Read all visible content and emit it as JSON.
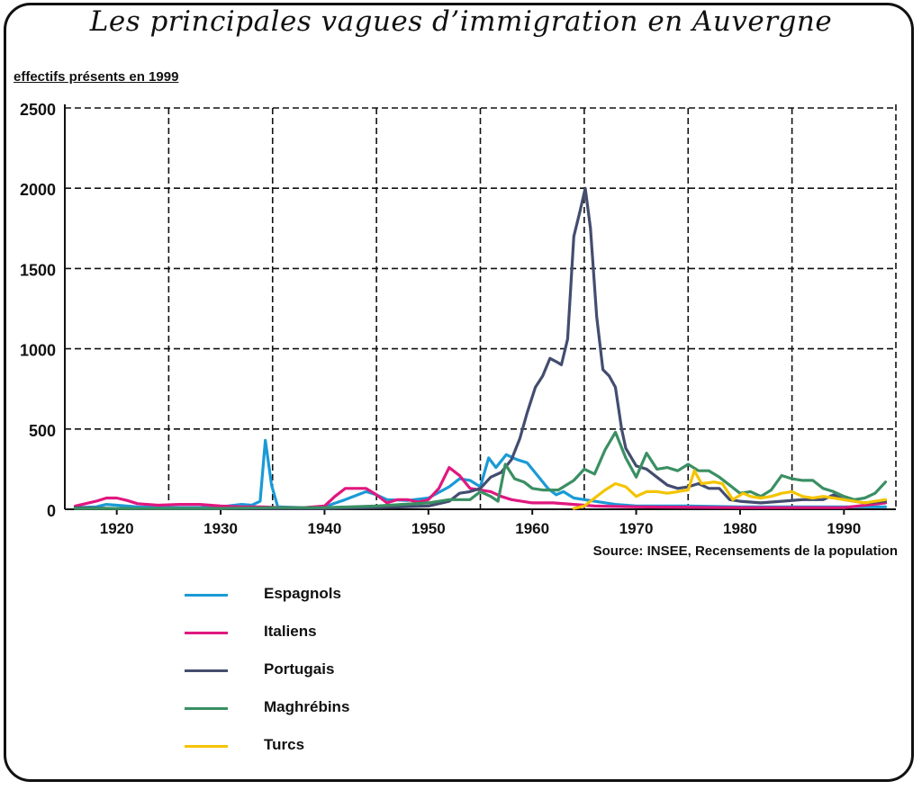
{
  "title": "Les principales vagues d’immigration en Auvergne",
  "subtitle": "effectifs présents en 1999",
  "source": "Source: INSEE, Recensements de la population",
  "chart_data": {
    "type": "line",
    "xlim": [
      1915,
      1995
    ],
    "ylim": [
      0,
      2500
    ],
    "x_ticks": [
      1920,
      1930,
      1940,
      1950,
      1960,
      1970,
      1980,
      1990
    ],
    "x_tick_labels": [
      "1920",
      "1930",
      "1940",
      "1950",
      "1960",
      "1970",
      "1980",
      "1990"
    ],
    "y_ticks": [
      0,
      500,
      1000,
      1500,
      2000,
      2500
    ],
    "y_tick_labels": [
      "0",
      "500",
      "1000",
      "1500",
      "2000",
      "2500"
    ],
    "grid": true,
    "legend_position": "bottom",
    "series": [
      {
        "name": "Espagnols",
        "color": "#1a9ad6",
        "points": [
          [
            1916,
            10
          ],
          [
            1918,
            15
          ],
          [
            1919,
            30
          ],
          [
            1920,
            25
          ],
          [
            1922,
            15
          ],
          [
            1925,
            10
          ],
          [
            1928,
            10
          ],
          [
            1930,
            15
          ],
          [
            1932,
            30
          ],
          [
            1933,
            25
          ],
          [
            1933.8,
            50
          ],
          [
            1934.3,
            430
          ],
          [
            1934.9,
            150
          ],
          [
            1935.5,
            15
          ],
          [
            1938,
            10
          ],
          [
            1940,
            15
          ],
          [
            1942,
            60
          ],
          [
            1944,
            110
          ],
          [
            1945,
            90
          ],
          [
            1946,
            60
          ],
          [
            1948,
            55
          ],
          [
            1950,
            70
          ],
          [
            1952,
            140
          ],
          [
            1953,
            190
          ],
          [
            1954,
            180
          ],
          [
            1955,
            140
          ],
          [
            1955.8,
            320
          ],
          [
            1956.5,
            260
          ],
          [
            1957.5,
            340
          ],
          [
            1958.5,
            310
          ],
          [
            1959.5,
            290
          ],
          [
            1960.5,
            210
          ],
          [
            1961.5,
            130
          ],
          [
            1962.3,
            90
          ],
          [
            1963,
            110
          ],
          [
            1964,
            70
          ],
          [
            1966,
            50
          ],
          [
            1968,
            30
          ],
          [
            1970,
            20
          ],
          [
            1975,
            20
          ],
          [
            1980,
            15
          ],
          [
            1985,
            15
          ],
          [
            1990,
            15
          ],
          [
            1994,
            15
          ]
        ]
      },
      {
        "name": "Italiens",
        "color": "#e0177f",
        "points": [
          [
            1916,
            20
          ],
          [
            1918,
            50
          ],
          [
            1919,
            70
          ],
          [
            1920,
            70
          ],
          [
            1921,
            55
          ],
          [
            1922,
            35
          ],
          [
            1924,
            25
          ],
          [
            1926,
            30
          ],
          [
            1928,
            30
          ],
          [
            1930,
            20
          ],
          [
            1932,
            15
          ],
          [
            1934,
            15
          ],
          [
            1936,
            10
          ],
          [
            1938,
            10
          ],
          [
            1940,
            20
          ],
          [
            1941,
            80
          ],
          [
            1942,
            130
          ],
          [
            1943,
            130
          ],
          [
            1944,
            130
          ],
          [
            1945,
            90
          ],
          [
            1946,
            40
          ],
          [
            1947,
            60
          ],
          [
            1948,
            60
          ],
          [
            1949,
            45
          ],
          [
            1950,
            60
          ],
          [
            1951,
            130
          ],
          [
            1952,
            260
          ],
          [
            1953,
            210
          ],
          [
            1954,
            130
          ],
          [
            1955,
            120
          ],
          [
            1956,
            110
          ],
          [
            1957,
            80
          ],
          [
            1958,
            60
          ],
          [
            1960,
            40
          ],
          [
            1962,
            40
          ],
          [
            1964,
            30
          ],
          [
            1966,
            20
          ],
          [
            1970,
            15
          ],
          [
            1980,
            10
          ],
          [
            1990,
            10
          ],
          [
            1994,
            40
          ]
        ]
      },
      {
        "name": "Portugais",
        "color": "#434d6f",
        "points": [
          [
            1916,
            10
          ],
          [
            1920,
            5
          ],
          [
            1925,
            5
          ],
          [
            1930,
            5
          ],
          [
            1935,
            5
          ],
          [
            1940,
            5
          ],
          [
            1945,
            10
          ],
          [
            1950,
            20
          ],
          [
            1952,
            50
          ],
          [
            1953,
            100
          ],
          [
            1954,
            110
          ],
          [
            1955,
            130
          ],
          [
            1956,
            200
          ],
          [
            1957,
            230
          ],
          [
            1958,
            310
          ],
          [
            1958.8,
            440
          ],
          [
            1959.5,
            600
          ],
          [
            1960.3,
            760
          ],
          [
            1961,
            830
          ],
          [
            1961.7,
            940
          ],
          [
            1962.3,
            920
          ],
          [
            1962.8,
            900
          ],
          [
            1963.4,
            1060
          ],
          [
            1964,
            1700
          ],
          [
            1964.6,
            1860
          ],
          [
            1965.1,
            2000
          ],
          [
            1965.6,
            1750
          ],
          [
            1966.2,
            1200
          ],
          [
            1966.8,
            870
          ],
          [
            1967.4,
            830
          ],
          [
            1968,
            760
          ],
          [
            1968.6,
            500
          ],
          [
            1969,
            380
          ],
          [
            1970,
            270
          ],
          [
            1971,
            250
          ],
          [
            1972,
            200
          ],
          [
            1973,
            150
          ],
          [
            1974,
            130
          ],
          [
            1975,
            140
          ],
          [
            1976,
            160
          ],
          [
            1977,
            130
          ],
          [
            1978,
            130
          ],
          [
            1979,
            60
          ],
          [
            1980,
            50
          ],
          [
            1982,
            40
          ],
          [
            1984,
            50
          ],
          [
            1986,
            60
          ],
          [
            1988,
            60
          ],
          [
            1989,
            90
          ],
          [
            1990,
            60
          ],
          [
            1992,
            40
          ],
          [
            1994,
            50
          ]
        ]
      },
      {
        "name": "Maghrébins",
        "color": "#3a8f63",
        "points": [
          [
            1916,
            5
          ],
          [
            1920,
            5
          ],
          [
            1925,
            5
          ],
          [
            1930,
            5
          ],
          [
            1935,
            10
          ],
          [
            1940,
            10
          ],
          [
            1945,
            20
          ],
          [
            1950,
            40
          ],
          [
            1952,
            60
          ],
          [
            1954,
            60
          ],
          [
            1955,
            110
          ],
          [
            1956,
            80
          ],
          [
            1956.7,
            50
          ],
          [
            1957.4,
            280
          ],
          [
            1958.3,
            190
          ],
          [
            1959.2,
            170
          ],
          [
            1960,
            130
          ],
          [
            1961,
            120
          ],
          [
            1962.5,
            120
          ],
          [
            1964,
            180
          ],
          [
            1965,
            250
          ],
          [
            1966,
            220
          ],
          [
            1967,
            370
          ],
          [
            1968,
            480
          ],
          [
            1969,
            320
          ],
          [
            1970,
            200
          ],
          [
            1971,
            350
          ],
          [
            1972,
            250
          ],
          [
            1973,
            260
          ],
          [
            1974,
            240
          ],
          [
            1975,
            280
          ],
          [
            1976,
            240
          ],
          [
            1977,
            240
          ],
          [
            1978,
            200
          ],
          [
            1979,
            150
          ],
          [
            1980,
            100
          ],
          [
            1981,
            110
          ],
          [
            1982,
            80
          ],
          [
            1983,
            120
          ],
          [
            1984,
            210
          ],
          [
            1985,
            190
          ],
          [
            1986,
            180
          ],
          [
            1987,
            180
          ],
          [
            1988,
            130
          ],
          [
            1989,
            110
          ],
          [
            1990,
            80
          ],
          [
            1991,
            60
          ],
          [
            1992,
            70
          ],
          [
            1993,
            100
          ],
          [
            1994,
            170
          ]
        ]
      },
      {
        "name": "Turcs",
        "color": "#f4c400",
        "points": [
          [
            1964,
            5
          ],
          [
            1965,
            20
          ],
          [
            1966,
            70
          ],
          [
            1967,
            120
          ],
          [
            1968,
            160
          ],
          [
            1969,
            140
          ],
          [
            1970,
            80
          ],
          [
            1971,
            110
          ],
          [
            1972,
            110
          ],
          [
            1973,
            100
          ],
          [
            1974,
            110
          ],
          [
            1975,
            120
          ],
          [
            1975.6,
            240
          ],
          [
            1976.3,
            160
          ],
          [
            1977.5,
            170
          ],
          [
            1978.3,
            160
          ],
          [
            1979.3,
            60
          ],
          [
            1980.3,
            100
          ],
          [
            1981,
            80
          ],
          [
            1982,
            70
          ],
          [
            1983,
            80
          ],
          [
            1984,
            100
          ],
          [
            1985,
            110
          ],
          [
            1986,
            80
          ],
          [
            1987,
            70
          ],
          [
            1988,
            80
          ],
          [
            1989,
            70
          ],
          [
            1990,
            60
          ],
          [
            1991,
            50
          ],
          [
            1992,
            40
          ],
          [
            1993,
            50
          ],
          [
            1994,
            60
          ]
        ]
      }
    ]
  }
}
